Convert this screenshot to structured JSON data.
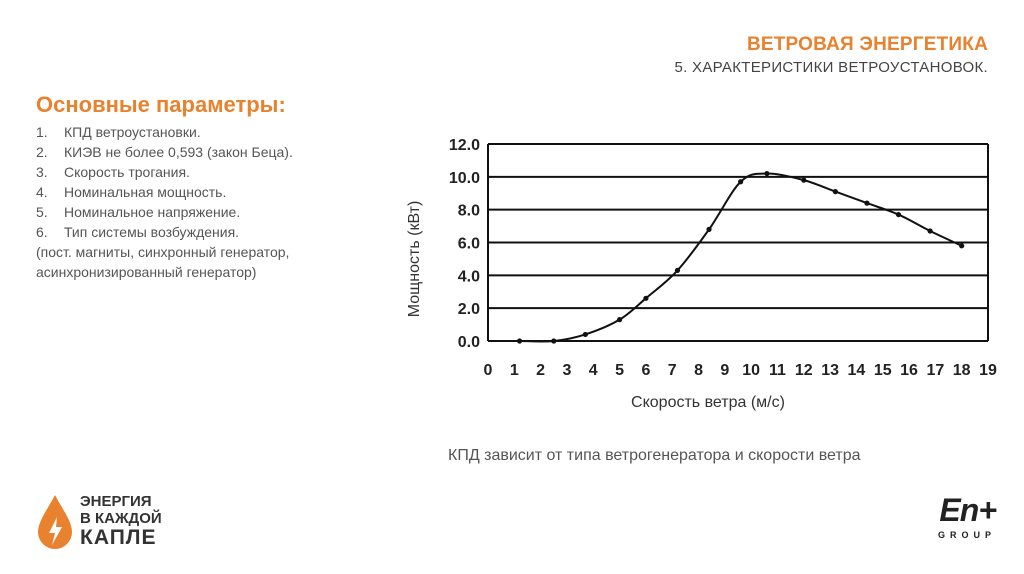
{
  "header": {
    "title": "ВЕТРОВАЯ ЭНЕРГЕТИКА",
    "subtitle": "5. ХАРАКТЕРИСТИКИ ВЕТРОУСТАНОВОК."
  },
  "params": {
    "heading": "Основные параметры:",
    "items": [
      {
        "num": "1.",
        "text": "КПД ветроустановки."
      },
      {
        "num": "2.",
        "text": "КИЭВ не более 0,593 (закон Беца)."
      },
      {
        "num": "3.",
        "text": "Скорость трогания."
      },
      {
        "num": "4.",
        "text": "Номинальная мощность."
      },
      {
        "num": "5.",
        "text": "Номинальное напряжение."
      },
      {
        "num": "6.",
        "text": "Тип системы возбуждения."
      }
    ],
    "note": "(пост. магниты, синхронный генератор, асинхронизированный генератор)"
  },
  "caption": "КПД зависит от типа ветрогенератора и скорости ветра",
  "logo_left": {
    "line1": "ЭНЕРГИЯ",
    "line2": "В КАЖДОЙ",
    "line3": "КАПЛЕ",
    "icon": "water-drop-bolt-icon",
    "color": "#e8822e"
  },
  "logo_right": {
    "brand": "En+",
    "group": "GROUP"
  },
  "chart_data": {
    "type": "line",
    "xlabel": "Скорость ветра (м/с)",
    "ylabel": "Мощность (кВт)",
    "xlim": [
      0,
      19
    ],
    "ylim": [
      0,
      12
    ],
    "x_ticks": [
      "0",
      "1",
      "2",
      "3",
      "4",
      "5",
      "6",
      "7",
      "8",
      "9",
      "10",
      "11",
      "12",
      "13",
      "14",
      "15",
      "16",
      "17",
      "18",
      "19"
    ],
    "y_ticks": [
      "0.0",
      "2.0",
      "4.0",
      "6.0",
      "8.0",
      "10.0",
      "12.0"
    ],
    "grid": "horizontal",
    "series": [
      {
        "name": "",
        "x": [
          1.2,
          2.5,
          3.7,
          5.0,
          6.0,
          7.2,
          8.4,
          9.6,
          10.6,
          12.0,
          13.2,
          14.4,
          15.6,
          16.8,
          18.0
        ],
        "y": [
          0.0,
          0.0,
          0.4,
          1.3,
          2.6,
          4.3,
          6.8,
          9.7,
          10.2,
          9.8,
          9.1,
          8.4,
          7.7,
          6.7,
          5.8
        ]
      }
    ]
  }
}
